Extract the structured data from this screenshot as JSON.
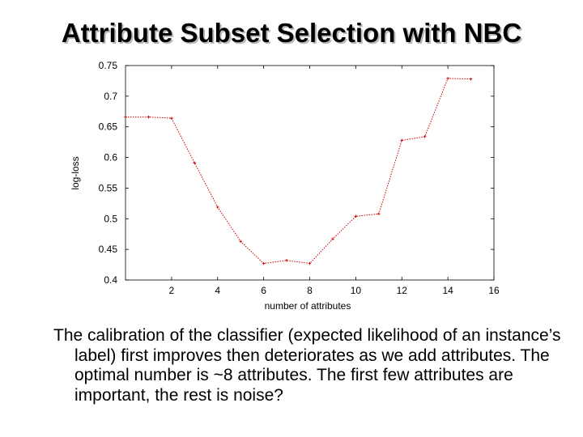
{
  "slide": {
    "title": "Attribute Subset Selection with NBC",
    "caption": "The calibration of the classifier (expected likelihood of an instance’s label) first improves then deteriorates as we add attributes. The optimal number is ~8 attributes. The first few attributes are important, the rest is noise?"
  },
  "chart_data": {
    "type": "line",
    "title": "",
    "xlabel": "number of attributes",
    "ylabel": "log-loss",
    "xlim": [
      0,
      16
    ],
    "ylim": [
      0.4,
      0.75
    ],
    "x_ticks": [
      2,
      4,
      6,
      8,
      10,
      12,
      14,
      16
    ],
    "y_ticks": [
      0.4,
      0.45,
      0.5,
      0.55,
      0.6,
      0.65,
      0.7,
      0.75
    ],
    "grid": false,
    "series": [
      {
        "color": "#cc0000",
        "style": "dotted",
        "x": [
          0,
          1,
          2,
          3,
          4,
          5,
          6,
          7,
          8,
          9,
          10,
          11,
          12,
          13,
          14,
          15
        ],
        "y": [
          0.666,
          0.666,
          0.664,
          0.591,
          0.519,
          0.463,
          0.427,
          0.432,
          0.427,
          0.467,
          0.504,
          0.508,
          0.628,
          0.634,
          0.729,
          0.728
        ]
      }
    ]
  }
}
